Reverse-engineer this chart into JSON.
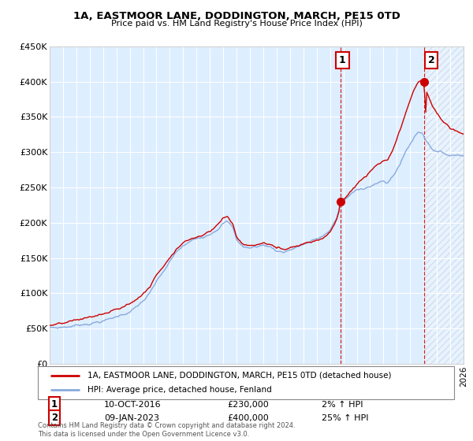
{
  "title": "1A, EASTMOOR LANE, DODDINGTON, MARCH, PE15 0TD",
  "subtitle": "Price paid vs. HM Land Registry's House Price Index (HPI)",
  "legend_line1": "1A, EASTMOOR LANE, DODDINGTON, MARCH, PE15 0TD (detached house)",
  "legend_line2": "HPI: Average price, detached house, Fenland",
  "annotation1_date": "10-OCT-2016",
  "annotation1_price": "£230,000",
  "annotation1_hpi": "2% ↑ HPI",
  "annotation2_date": "09-JAN-2023",
  "annotation2_price": "£400,000",
  "annotation2_hpi": "25% ↑ HPI",
  "footnote": "Contains HM Land Registry data © Crown copyright and database right 2024.\nThis data is licensed under the Open Government Licence v3.0.",
  "red_line_color": "#cc0000",
  "blue_line_color": "#88aadd",
  "bg_color": "#ddeeff",
  "grid_color": "#ffffff",
  "vline_color": "#cc0000",
  "dot_color": "#cc0000",
  "ylim": [
    0,
    450000
  ],
  "xlim_start": 1995.0,
  "xlim_end": 2026.0,
  "sale1_x": 2016.78,
  "sale1_y": 230000,
  "sale2_x": 2023.03,
  "sale2_y": 400000
}
